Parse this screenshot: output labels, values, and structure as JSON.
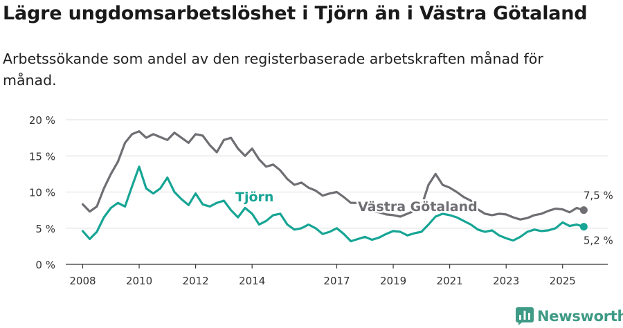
{
  "title": "Lägre ungdomsarbetslöshet i Tjörn än i Västra Götaland",
  "subtitle": "Arbetssökande som andel av den registerbaserade arbetskraften månad för månad.",
  "brand": {
    "name": "Newsworthy",
    "color": "#3f9a86"
  },
  "chart_data": {
    "type": "line",
    "title": "Lägre ungdomsarbetslöshet i Tjörn än i Västra Götaland",
    "xlabel": "",
    "ylabel": "",
    "xlim": [
      2007.4,
      2026.6
    ],
    "ylim": [
      0,
      20
    ],
    "grid": true,
    "y_ticks": [
      0,
      5,
      10,
      15,
      20
    ],
    "y_tick_labels": [
      "0 %",
      "5 %",
      "10 %",
      "15 %",
      "20 %"
    ],
    "x_ticks": [
      2008,
      2010,
      2012,
      2014,
      2017,
      2019,
      2021,
      2023,
      2025
    ],
    "x_tick_labels": [
      "2008",
      "2010",
      "2012",
      "2014",
      "2017",
      "2019",
      "2021",
      "2023",
      "2025"
    ],
    "series": [
      {
        "name": "Västra Götaland",
        "color": "#6e6e73",
        "end_label": "7,5 %",
        "points": [
          [
            2008.0,
            8.3
          ],
          [
            2008.25,
            7.3
          ],
          [
            2008.5,
            8.0
          ],
          [
            2008.75,
            10.5
          ],
          [
            2009.0,
            12.5
          ],
          [
            2009.25,
            14.2
          ],
          [
            2009.5,
            16.8
          ],
          [
            2009.75,
            18.0
          ],
          [
            2010.0,
            18.4
          ],
          [
            2010.25,
            17.5
          ],
          [
            2010.5,
            18.0
          ],
          [
            2010.75,
            17.6
          ],
          [
            2011.0,
            17.2
          ],
          [
            2011.25,
            18.2
          ],
          [
            2011.5,
            17.5
          ],
          [
            2011.75,
            16.8
          ],
          [
            2012.0,
            18.0
          ],
          [
            2012.25,
            17.8
          ],
          [
            2012.5,
            16.5
          ],
          [
            2012.75,
            15.5
          ],
          [
            2013.0,
            17.2
          ],
          [
            2013.25,
            17.5
          ],
          [
            2013.5,
            16.0
          ],
          [
            2013.75,
            15.0
          ],
          [
            2014.0,
            16.0
          ],
          [
            2014.25,
            14.5
          ],
          [
            2014.5,
            13.5
          ],
          [
            2014.75,
            13.8
          ],
          [
            2015.0,
            13.0
          ],
          [
            2015.25,
            11.8
          ],
          [
            2015.5,
            11.0
          ],
          [
            2015.75,
            11.3
          ],
          [
            2016.0,
            10.6
          ],
          [
            2016.25,
            10.2
          ],
          [
            2016.5,
            9.5
          ],
          [
            2016.75,
            9.8
          ],
          [
            2017.0,
            10.0
          ],
          [
            2017.25,
            9.3
          ],
          [
            2017.5,
            8.5
          ],
          [
            2017.75,
            8.5
          ],
          [
            2018.0,
            8.0
          ],
          [
            2018.25,
            7.3
          ],
          [
            2018.5,
            7.2
          ],
          [
            2018.75,
            6.9
          ],
          [
            2019.0,
            6.8
          ],
          [
            2019.25,
            6.6
          ],
          [
            2019.5,
            7.0
          ],
          [
            2019.75,
            7.4
          ],
          [
            2020.0,
            8.0
          ],
          [
            2020.25,
            11.0
          ],
          [
            2020.5,
            12.5
          ],
          [
            2020.75,
            11.0
          ],
          [
            2021.0,
            10.6
          ],
          [
            2021.25,
            10.0
          ],
          [
            2021.5,
            9.3
          ],
          [
            2021.75,
            8.8
          ],
          [
            2022.0,
            7.6
          ],
          [
            2022.25,
            7.0
          ],
          [
            2022.5,
            6.8
          ],
          [
            2022.75,
            7.0
          ],
          [
            2023.0,
            6.9
          ],
          [
            2023.25,
            6.5
          ],
          [
            2023.5,
            6.2
          ],
          [
            2023.75,
            6.4
          ],
          [
            2024.0,
            6.8
          ],
          [
            2024.25,
            7.0
          ],
          [
            2024.5,
            7.4
          ],
          [
            2024.75,
            7.7
          ],
          [
            2025.0,
            7.6
          ],
          [
            2025.25,
            7.2
          ],
          [
            2025.5,
            7.8
          ],
          [
            2025.75,
            7.5
          ]
        ]
      },
      {
        "name": "Tjörn",
        "color": "#17a595",
        "end_label": "5,2 %",
        "points": [
          [
            2008.0,
            4.6
          ],
          [
            2008.25,
            3.5
          ],
          [
            2008.5,
            4.5
          ],
          [
            2008.75,
            6.5
          ],
          [
            2009.0,
            7.8
          ],
          [
            2009.25,
            8.5
          ],
          [
            2009.5,
            8.0
          ],
          [
            2009.75,
            10.8
          ],
          [
            2010.0,
            13.5
          ],
          [
            2010.25,
            10.5
          ],
          [
            2010.5,
            9.8
          ],
          [
            2010.75,
            10.5
          ],
          [
            2011.0,
            12.0
          ],
          [
            2011.25,
            10.0
          ],
          [
            2011.5,
            9.0
          ],
          [
            2011.75,
            8.2
          ],
          [
            2012.0,
            9.8
          ],
          [
            2012.25,
            8.3
          ],
          [
            2012.5,
            8.0
          ],
          [
            2012.75,
            8.5
          ],
          [
            2013.0,
            8.8
          ],
          [
            2013.25,
            7.5
          ],
          [
            2013.5,
            6.5
          ],
          [
            2013.75,
            7.8
          ],
          [
            2014.0,
            7.0
          ],
          [
            2014.25,
            5.5
          ],
          [
            2014.5,
            6.0
          ],
          [
            2014.75,
            6.8
          ],
          [
            2015.0,
            7.0
          ],
          [
            2015.25,
            5.5
          ],
          [
            2015.5,
            4.8
          ],
          [
            2015.75,
            5.0
          ],
          [
            2016.0,
            5.5
          ],
          [
            2016.25,
            5.0
          ],
          [
            2016.5,
            4.2
          ],
          [
            2016.75,
            4.5
          ],
          [
            2017.0,
            5.0
          ],
          [
            2017.25,
            4.2
          ],
          [
            2017.5,
            3.2
          ],
          [
            2017.75,
            3.5
          ],
          [
            2018.0,
            3.8
          ],
          [
            2018.25,
            3.4
          ],
          [
            2018.5,
            3.7
          ],
          [
            2018.75,
            4.2
          ],
          [
            2019.0,
            4.6
          ],
          [
            2019.25,
            4.5
          ],
          [
            2019.5,
            4.0
          ],
          [
            2019.75,
            4.3
          ],
          [
            2020.0,
            4.5
          ],
          [
            2020.25,
            5.5
          ],
          [
            2020.5,
            6.6
          ],
          [
            2020.75,
            7.0
          ],
          [
            2021.0,
            6.8
          ],
          [
            2021.25,
            6.5
          ],
          [
            2021.5,
            6.0
          ],
          [
            2021.75,
            5.5
          ],
          [
            2022.0,
            4.8
          ],
          [
            2022.25,
            4.5
          ],
          [
            2022.5,
            4.7
          ],
          [
            2022.75,
            4.0
          ],
          [
            2023.0,
            3.6
          ],
          [
            2023.25,
            3.3
          ],
          [
            2023.5,
            3.8
          ],
          [
            2023.75,
            4.5
          ],
          [
            2024.0,
            4.8
          ],
          [
            2024.25,
            4.6
          ],
          [
            2024.5,
            4.7
          ],
          [
            2024.75,
            5.0
          ],
          [
            2025.0,
            5.8
          ],
          [
            2025.25,
            5.3
          ],
          [
            2025.5,
            5.5
          ],
          [
            2025.75,
            5.2
          ]
        ]
      }
    ]
  }
}
